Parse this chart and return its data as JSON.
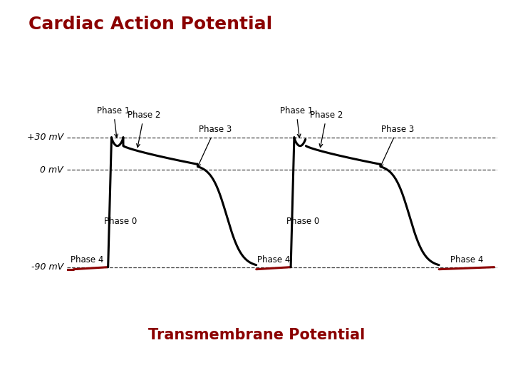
{
  "title": "Cardiac Action Potential",
  "xlabel": "Transmembrane Potential",
  "title_color": "#8B0000",
  "xlabel_color": "#8B0000",
  "bg_color": "#FFFFFF",
  "border_color": "#8B0000",
  "line_color_action": "#000000",
  "line_color_phase4": "#8B0000",
  "v_plus30": 30,
  "v_zero": 0,
  "v_minus90": -90,
  "ref_lines": [
    30,
    0,
    -90
  ],
  "ytick_labels": [
    "+30 mV",
    "0 mV",
    "-90 mV"
  ],
  "ytick_vals": [
    30,
    0,
    -90
  ],
  "bg_chart": "#EAEAEA",
  "phase_label_fs": 8.5,
  "title_fs": 18,
  "xlabel_fs": 15
}
